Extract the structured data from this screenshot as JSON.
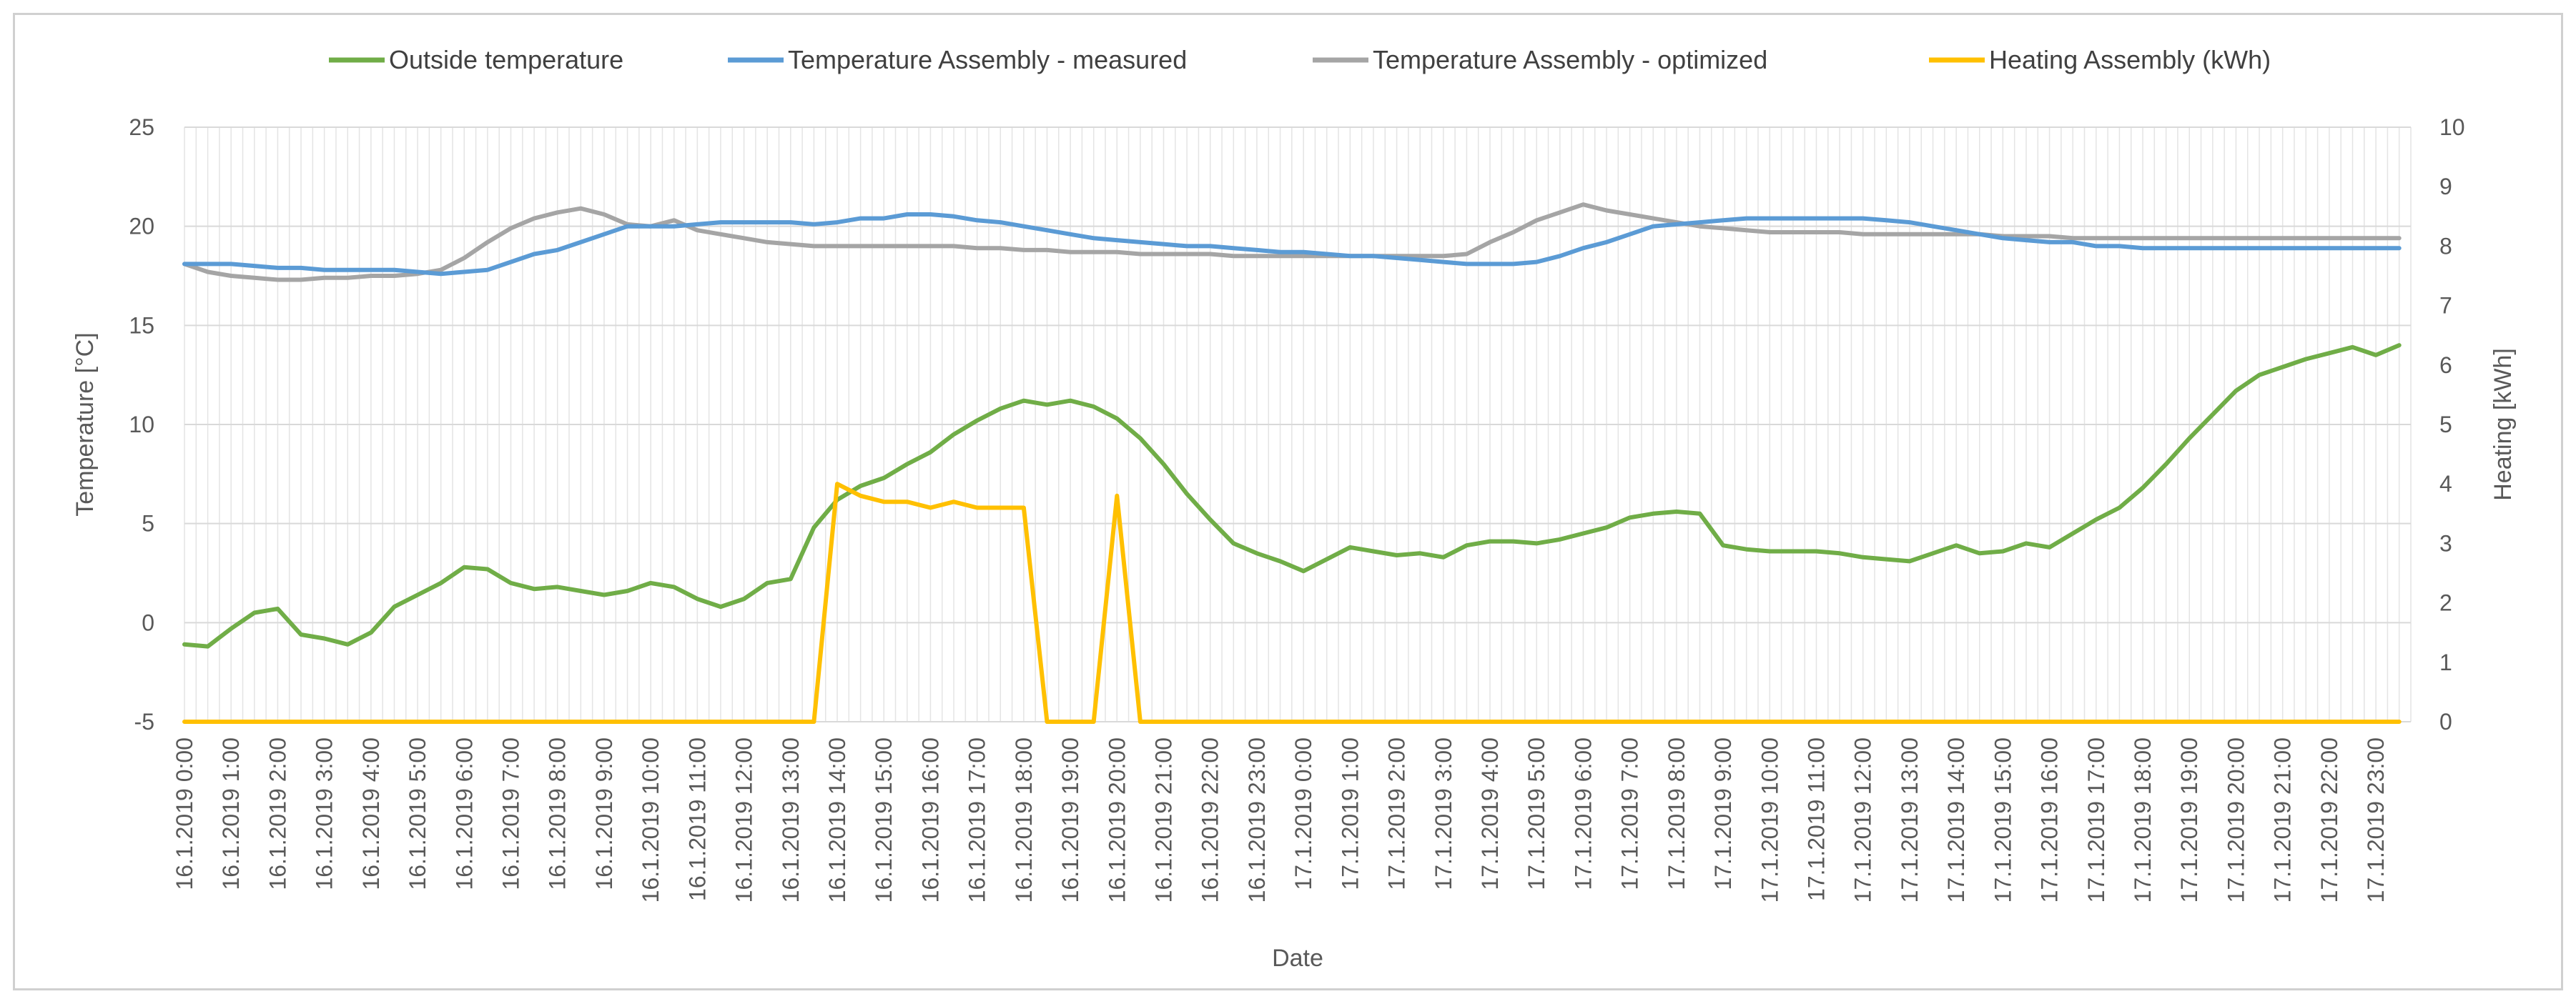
{
  "chart_data": {
    "type": "line",
    "title": "",
    "xlabel": "Date",
    "ylabel": "Temperature [°C]",
    "y2label": "Heating [kWh]",
    "ylim": [
      -5,
      25
    ],
    "y2lim": [
      0,
      10
    ],
    "yticks": [
      -5,
      0,
      5,
      10,
      15,
      20,
      25
    ],
    "y2ticks": [
      0,
      1,
      2,
      3,
      4,
      5,
      6,
      7,
      8,
      9,
      10
    ],
    "grid": true,
    "legend_position": "top",
    "x": [
      0,
      2,
      4,
      6,
      8,
      10,
      12,
      14,
      16,
      18,
      20,
      22,
      24,
      26,
      28,
      30,
      32,
      34,
      36,
      38,
      40,
      42,
      44,
      46,
      48,
      50,
      52,
      54,
      56,
      58,
      60,
      62,
      64,
      66,
      68,
      70,
      72,
      74,
      76,
      78,
      80,
      82,
      84,
      86,
      88,
      90,
      92,
      94,
      96,
      98,
      100,
      102,
      104,
      106,
      108,
      110,
      112,
      114,
      116,
      118,
      120,
      122,
      124,
      126,
      128,
      130,
      132,
      134,
      136,
      138,
      140,
      142,
      144,
      146,
      148,
      150,
      152,
      154,
      156,
      158,
      160,
      162,
      164,
      166,
      168,
      170,
      172,
      174,
      176,
      178,
      180,
      182,
      184,
      186,
      188,
      190
    ],
    "x_max": 191,
    "x_tick_labels": [
      "16.1.2019 0:00",
      "16.1.2019 1:00",
      "16.1.2019 2:00",
      "16.1.2019 3:00",
      "16.1.2019 4:00",
      "16.1.2019 5:00",
      "16.1.2019 6:00",
      "16.1.2019 7:00",
      "16.1.2019 8:00",
      "16.1.2019 9:00",
      "16.1.2019 10:00",
      "16.1.2019 11:00",
      "16.1.2019 12:00",
      "16.1.2019 13:00",
      "16.1.2019 14:00",
      "16.1.2019 15:00",
      "16.1.2019 16:00",
      "16.1.2019 17:00",
      "16.1.2019 18:00",
      "16.1.2019 19:00",
      "16.1.2019 20:00",
      "16.1.2019 21:00",
      "16.1.2019 22:00",
      "16.1.2019 23:00",
      "17.1.2019 0:00",
      "17.1.2019 1:00",
      "17.1.2019 2:00",
      "17.1.2019 3:00",
      "17.1.2019 4:00",
      "17.1.2019 5:00",
      "17.1.2019 6:00",
      "17.1.2019 7:00",
      "17.1.2019 8:00",
      "17.1.2019 9:00",
      "17.1.2019 10:00",
      "17.1.2019 11:00",
      "17.1.2019 12:00",
      "17.1.2019 13:00",
      "17.1.2019 14:00",
      "17.1.2019 15:00",
      "17.1.2019 16:00",
      "17.1.2019 17:00",
      "17.1.2019 18:00",
      "17.1.2019 19:00",
      "17.1.2019 20:00",
      "17.1.2019 21:00",
      "17.1.2019 22:00",
      "17.1.2019 23:00"
    ],
    "x_tick_step": 4,
    "series": [
      {
        "name": "Outside temperature",
        "axis": "left",
        "color": "#70ad47",
        "values": [
          -1.1,
          -1.2,
          -0.3,
          0.5,
          0.7,
          -0.6,
          -0.8,
          -1.1,
          -0.5,
          0.8,
          1.4,
          2.0,
          2.8,
          2.7,
          2.0,
          1.7,
          1.8,
          1.6,
          1.4,
          1.6,
          2.0,
          1.8,
          1.2,
          0.8,
          1.2,
          2.0,
          2.2,
          4.8,
          6.2,
          6.9,
          7.3,
          8.0,
          8.6,
          9.5,
          10.2,
          10.8,
          11.2,
          11.0,
          11.2,
          10.9,
          10.3,
          9.3,
          8.0,
          6.5,
          5.2,
          4.0,
          3.5,
          3.1,
          2.6,
          3.2,
          3.8,
          3.6,
          3.4,
          3.5,
          3.3,
          3.9,
          4.1,
          4.1,
          4.0,
          4.2,
          4.5,
          4.8,
          5.3,
          5.5,
          5.6,
          5.5,
          3.9,
          3.7,
          3.6,
          3.6,
          3.6,
          3.5,
          3.3,
          3.2,
          3.1,
          3.5,
          3.9,
          3.5,
          3.6,
          4.0,
          3.8,
          4.5,
          5.2,
          5.8,
          6.8,
          8.0,
          9.3,
          10.5,
          11.7,
          12.5,
          12.9,
          13.3,
          13.6,
          13.9,
          13.5,
          14.0
        ]
      },
      {
        "name": "Temperature Assembly - measured",
        "axis": "left",
        "color": "#5b9bd5",
        "values": [
          18.1,
          18.1,
          18.1,
          18.0,
          17.9,
          17.9,
          17.8,
          17.8,
          17.8,
          17.8,
          17.7,
          17.6,
          17.7,
          17.8,
          18.2,
          18.6,
          18.8,
          19.2,
          19.6,
          20.0,
          20.0,
          20.0,
          20.1,
          20.2,
          20.2,
          20.2,
          20.2,
          20.1,
          20.2,
          20.4,
          20.4,
          20.6,
          20.6,
          20.5,
          20.3,
          20.2,
          20.0,
          19.8,
          19.6,
          19.4,
          19.3,
          19.2,
          19.1,
          19.0,
          19.0,
          18.9,
          18.8,
          18.7,
          18.7,
          18.6,
          18.5,
          18.5,
          18.4,
          18.3,
          18.2,
          18.1,
          18.1,
          18.1,
          18.2,
          18.5,
          18.9,
          19.2,
          19.6,
          20.0,
          20.1,
          20.2,
          20.3,
          20.4,
          20.4,
          20.4,
          20.4,
          20.4,
          20.4,
          20.3,
          20.2,
          20.0,
          19.8,
          19.6,
          19.4,
          19.3,
          19.2,
          19.2,
          19.0,
          19.0,
          18.9,
          18.9,
          18.9,
          18.9,
          18.9,
          18.9,
          18.9,
          18.9,
          18.9,
          18.9,
          18.9,
          18.9
        ]
      },
      {
        "name": "Temperature Assembly - optimized",
        "axis": "left",
        "color": "#a5a5a5",
        "values": [
          18.1,
          17.7,
          17.5,
          17.4,
          17.3,
          17.3,
          17.4,
          17.4,
          17.5,
          17.5,
          17.6,
          17.8,
          18.4,
          19.2,
          19.9,
          20.4,
          20.7,
          20.9,
          20.6,
          20.1,
          20.0,
          20.3,
          19.8,
          19.6,
          19.4,
          19.2,
          19.1,
          19.0,
          19.0,
          19.0,
          19.0,
          19.0,
          19.0,
          19.0,
          18.9,
          18.9,
          18.8,
          18.8,
          18.7,
          18.7,
          18.7,
          18.6,
          18.6,
          18.6,
          18.6,
          18.5,
          18.5,
          18.5,
          18.5,
          18.5,
          18.5,
          18.5,
          18.5,
          18.5,
          18.5,
          18.6,
          19.2,
          19.7,
          20.3,
          20.7,
          21.1,
          20.8,
          20.6,
          20.4,
          20.2,
          20.0,
          19.9,
          19.8,
          19.7,
          19.7,
          19.7,
          19.7,
          19.6,
          19.6,
          19.6,
          19.6,
          19.6,
          19.6,
          19.5,
          19.5,
          19.5,
          19.4,
          19.4,
          19.4,
          19.4,
          19.4,
          19.4,
          19.4,
          19.4,
          19.4,
          19.4,
          19.4,
          19.4,
          19.4,
          19.4,
          19.4
        ]
      },
      {
        "name": "Heating Assembly (kWh)",
        "axis": "right",
        "color": "#ffc000",
        "values": [
          0,
          0,
          0,
          0,
          0,
          0,
          0,
          0,
          0,
          0,
          0,
          0,
          0,
          0,
          0,
          0,
          0,
          0,
          0,
          0,
          0,
          0,
          0,
          0,
          0,
          0,
          0,
          0,
          4.0,
          3.8,
          3.7,
          3.7,
          3.6,
          3.7,
          3.6,
          3.6,
          3.6,
          0,
          0,
          0,
          3.8,
          0,
          0,
          0,
          0,
          0,
          0,
          0,
          0,
          0,
          0,
          0,
          0,
          0,
          0,
          0,
          0,
          0,
          0,
          0,
          0,
          0,
          0,
          0,
          0,
          0,
          0,
          0,
          0,
          0,
          0,
          0,
          0,
          0,
          0,
          0,
          0,
          0,
          0,
          0,
          0,
          0,
          0,
          0,
          0,
          0,
          0,
          0,
          0,
          0,
          0,
          0,
          0,
          0,
          0,
          0
        ]
      }
    ]
  }
}
